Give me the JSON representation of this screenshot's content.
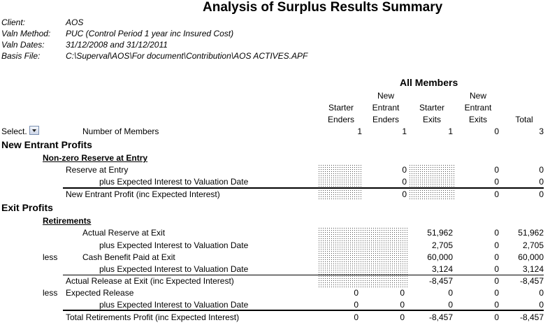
{
  "title": "Analysis of Surplus Results Summary",
  "meta": [
    {
      "label": "Client:",
      "value": "AOS"
    },
    {
      "label": "Valn Method:",
      "value": "PUC  (Control Period 1 year inc Insured Cost)"
    },
    {
      "label": "Valn Dates:",
      "value": "31/12/2008 and 31/12/2011"
    },
    {
      "label": "Basis File:",
      "value": "C:\\Superval\\AOS\\For document\\Contribution\\AOS ACTIVES.APF"
    }
  ],
  "group_header": "All Members",
  "columns": {
    "c1": [
      "Starter",
      "Enders"
    ],
    "c2": [
      "New",
      "Entrant",
      "Enders"
    ],
    "c3": [
      "Starter",
      "Exits"
    ],
    "c4": [
      "New",
      "Entrant",
      "Exits"
    ],
    "c5": [
      "Total"
    ]
  },
  "select_label": "Select.",
  "members": {
    "label": "Number of Members",
    "values": [
      "1",
      "1",
      "1",
      "0",
      "3"
    ]
  },
  "new_entrant": {
    "heading": "New Entrant Profits",
    "subheading": "Non-zero Reserve at Entry",
    "rows": [
      {
        "prefix": "",
        "label": "Reserve at Entry",
        "values": [
          "",
          "0",
          "",
          "0",
          "0"
        ]
      },
      {
        "prefix": "",
        "label": "plus Expected Interest to Valuation Date",
        "values": [
          "",
          "0",
          "",
          "0",
          "0"
        ]
      },
      {
        "prefix": "",
        "label": "New Entrant Profit (inc Expected Interest)",
        "values": [
          "",
          "0",
          "",
          "0",
          "0"
        ]
      }
    ]
  },
  "exit": {
    "heading": "Exit Profits",
    "subheading": "Retirements",
    "rows": [
      {
        "prefix": "",
        "label": "Actual Reserve at Exit",
        "values": [
          "",
          "",
          "51,962",
          "0",
          "51,962"
        ]
      },
      {
        "prefix": "",
        "label": "plus Expected Interest to Valuation Date",
        "values": [
          "",
          "",
          "2,705",
          "0",
          "2,705"
        ]
      },
      {
        "prefix": "less",
        "label": "Cash Benefit Paid at Exit",
        "values": [
          "",
          "",
          "60,000",
          "0",
          "60,000"
        ]
      },
      {
        "prefix": "",
        "label": "plus Expected Interest to Valuation Date",
        "values": [
          "",
          "",
          "3,124",
          "0",
          "3,124"
        ]
      },
      {
        "prefix": "",
        "label": "Actual Release at Exit (inc Expected Interest)",
        "values": [
          "",
          "",
          "-8,457",
          "0",
          "-8,457"
        ]
      },
      {
        "prefix": "less",
        "label": "Expected Release",
        "values": [
          "0",
          "0",
          "0",
          "0",
          "0"
        ]
      },
      {
        "prefix": "",
        "label": "plus Expected Interest to Valuation Date",
        "values": [
          "0",
          "0",
          "0",
          "0",
          "0"
        ]
      },
      {
        "prefix": "",
        "label": "Total Retirements Profit (inc Expected Interest)",
        "values": [
          "0",
          "0",
          "-8,457",
          "0",
          "-8,457"
        ]
      }
    ]
  }
}
